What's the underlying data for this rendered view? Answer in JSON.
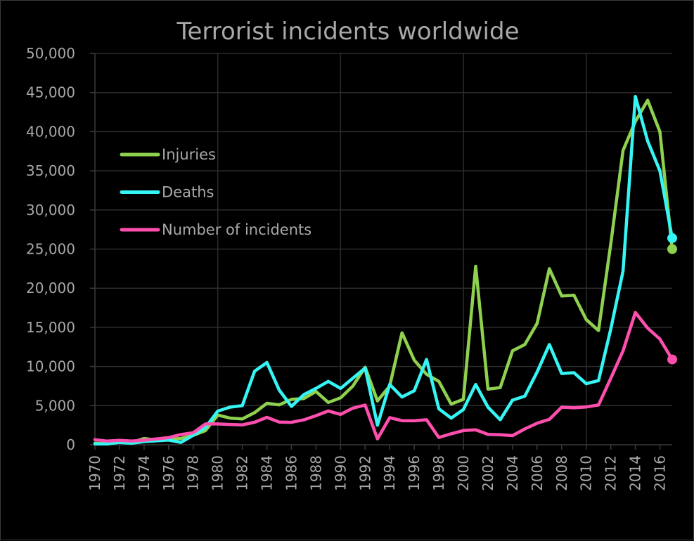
{
  "chart_data": {
    "type": "line",
    "title": "Terrorist incidents worldwide",
    "xlabel": "",
    "ylabel": "",
    "x": [
      1970,
      1971,
      1972,
      1973,
      1974,
      1975,
      1976,
      1977,
      1978,
      1979,
      1980,
      1981,
      1982,
      1983,
      1984,
      1985,
      1986,
      1987,
      1988,
      1989,
      1990,
      1991,
      1992,
      1993,
      1994,
      1995,
      1996,
      1997,
      1998,
      1999,
      2000,
      2001,
      2002,
      2003,
      2004,
      2005,
      2006,
      2007,
      2008,
      2009,
      2010,
      2011,
      2012,
      2013,
      2014,
      2015,
      2016,
      2017
    ],
    "xlim": [
      1970,
      2017
    ],
    "ylim": [
      0,
      50000
    ],
    "y_ticks": [
      0,
      5000,
      10000,
      15000,
      20000,
      25000,
      30000,
      35000,
      40000,
      45000,
      50000
    ],
    "y_tick_labels": [
      "0",
      "5,000",
      "10,000",
      "15,000",
      "20,000",
      "25,000",
      "30,000",
      "35,000",
      "40,000",
      "45,000",
      "50,000"
    ],
    "x_ticks": [
      1970,
      1972,
      1974,
      1976,
      1978,
      1980,
      1982,
      1984,
      1986,
      1988,
      1990,
      1992,
      1994,
      1996,
      1998,
      2000,
      2002,
      2004,
      2006,
      2008,
      2010,
      2012,
      2014,
      2016
    ],
    "x_tick_labels": [
      "1970",
      "1972",
      "1974",
      "1976",
      "1978",
      "1980",
      "1982",
      "1984",
      "1986",
      "1988",
      "1990",
      "1992",
      "1994",
      "1996",
      "1998",
      "2000",
      "2002",
      "2004",
      "2006",
      "2008",
      "2010",
      "2012",
      "2014",
      "2016"
    ],
    "grid": true,
    "legend_position": "upper-left",
    "series": [
      {
        "name": "Injuries",
        "color": "#8fd14f",
        "values": [
          200,
          100,
          400,
          300,
          800,
          600,
          700,
          800,
          1200,
          1800,
          3800,
          3400,
          3300,
          4100,
          5300,
          5100,
          5800,
          5900,
          6800,
          5400,
          6000,
          7500,
          9900,
          5600,
          7500,
          14300,
          10800,
          9000,
          8100,
          5200,
          5800,
          22800,
          7100,
          7300,
          12000,
          12800,
          15500,
          22500,
          19000,
          19100,
          16000,
          14600,
          25700,
          37600,
          41300,
          44000,
          40000,
          25000
        ]
      },
      {
        "name": "Deaths",
        "color": "#36f5f5",
        "values": [
          100,
          100,
          300,
          200,
          400,
          500,
          600,
          300,
          1200,
          2200,
          4300,
          4800,
          5000,
          9400,
          10500,
          7000,
          4900,
          6400,
          7200,
          8100,
          7200,
          8500,
          9800,
          2500,
          7700,
          6100,
          6900,
          10900,
          4600,
          3400,
          4500,
          7700,
          4800,
          3200,
          5700,
          6200,
          9300,
          12800,
          9100,
          9200,
          7800,
          8200,
          14800,
          22200,
          44500,
          38800,
          35000,
          26400
        ]
      },
      {
        "name": "Number of incidents",
        "color": "#ff4fae",
        "values": [
          650,
          470,
          570,
          470,
          580,
          740,
          920,
          1300,
          1530,
          2660,
          2660,
          2590,
          2540,
          2870,
          3500,
          2900,
          2860,
          3180,
          3720,
          4320,
          3880,
          4680,
          5070,
          750,
          3460,
          3080,
          3060,
          3200,
          930,
          1400,
          1810,
          1900,
          1330,
          1280,
          1170,
          2020,
          2750,
          3240,
          4800,
          4720,
          4830,
          5080,
          8500,
          12000,
          16900,
          14900,
          13500,
          10900
        ]
      }
    ]
  }
}
